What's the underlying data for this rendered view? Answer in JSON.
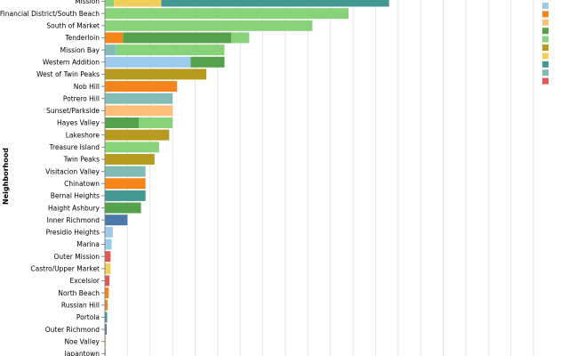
{
  "chart_data": {
    "type": "bar",
    "orientation": "horizontal",
    "stacked": true,
    "title": "",
    "xlabel": "",
    "ylabel": "Neighborhood",
    "xlim": [
      0,
      190
    ],
    "x_gridline_step": 10,
    "grid": true,
    "legend_position": "right",
    "colors": {
      "c1": "#9ecae9",
      "c2": "#f58518",
      "c3": "#ffbf79",
      "c4": "#54a24b",
      "c5": "#88d27a",
      "c6": "#b79a20",
      "c7": "#f2cf5b",
      "c8": "#439894",
      "c9": "#83bcb6",
      "c10": "#e45756",
      "c11": "#4c78a8"
    },
    "legend_swatches": [
      "c1",
      "c2",
      "c3",
      "c4",
      "c5",
      "c6",
      "c7",
      "c8",
      "c9",
      "c10"
    ],
    "rows": [
      {
        "category": "Mission",
        "segments": [
          {
            "value": 4,
            "color": "c5"
          },
          {
            "value": 21,
            "color": "c7"
          },
          {
            "value": 101,
            "color": "c8"
          }
        ]
      },
      {
        "category": "Financial District/South Beach",
        "segments": [
          {
            "value": 108,
            "color": "c5"
          }
        ]
      },
      {
        "category": "South of Market",
        "segments": [
          {
            "value": 92,
            "color": "c5"
          }
        ]
      },
      {
        "category": "Tenderloin",
        "segments": [
          {
            "value": 8,
            "color": "c2"
          },
          {
            "value": 48,
            "color": "c4"
          },
          {
            "value": 8,
            "color": "c5"
          }
        ]
      },
      {
        "category": "Mission Bay",
        "segments": [
          {
            "value": 5,
            "color": "c9"
          },
          {
            "value": 48,
            "color": "c5"
          }
        ]
      },
      {
        "category": "Western Addition",
        "segments": [
          {
            "value": 38,
            "color": "c1"
          },
          {
            "value": 15,
            "color": "c4"
          }
        ]
      },
      {
        "category": "West of Twin Peaks",
        "segments": [
          {
            "value": 45,
            "color": "c6"
          }
        ]
      },
      {
        "category": "Nob Hill",
        "segments": [
          {
            "value": 32,
            "color": "c2"
          }
        ]
      },
      {
        "category": "Potrero Hill",
        "segments": [
          {
            "value": 30,
            "color": "c9"
          }
        ]
      },
      {
        "category": "Sunset/Parkside",
        "segments": [
          {
            "value": 30,
            "color": "c3"
          }
        ]
      },
      {
        "category": "Hayes Valley",
        "segments": [
          {
            "value": 15,
            "color": "c4"
          },
          {
            "value": 15,
            "color": "c5"
          }
        ]
      },
      {
        "category": "Lakeshore",
        "segments": [
          {
            "value": 28.5,
            "color": "c6"
          }
        ]
      },
      {
        "category": "Treasure Island",
        "segments": [
          {
            "value": 24,
            "color": "c5"
          }
        ]
      },
      {
        "category": "Twin Peaks",
        "segments": [
          {
            "value": 22,
            "color": "c6"
          }
        ]
      },
      {
        "category": "Visitacion Valley",
        "segments": [
          {
            "value": 18,
            "color": "c9"
          }
        ]
      },
      {
        "category": "Chinatown",
        "segments": [
          {
            "value": 18,
            "color": "c2"
          }
        ]
      },
      {
        "category": "Bernal Heights",
        "segments": [
          {
            "value": 18,
            "color": "c8"
          }
        ]
      },
      {
        "category": "Haight Ashbury",
        "segments": [
          {
            "value": 16,
            "color": "c4"
          }
        ]
      },
      {
        "category": "Inner Richmond",
        "segments": [
          {
            "value": 10,
            "color": "c11"
          }
        ]
      },
      {
        "category": "Presidio Heights",
        "segments": [
          {
            "value": 3.5,
            "color": "c1"
          }
        ]
      },
      {
        "category": "Marina",
        "segments": [
          {
            "value": 3,
            "color": "c1"
          }
        ]
      },
      {
        "category": "Outer Mission",
        "segments": [
          {
            "value": 2.5,
            "color": "c10"
          }
        ]
      },
      {
        "category": "Castro/Upper Market",
        "segments": [
          {
            "value": 2.5,
            "color": "c7"
          }
        ]
      },
      {
        "category": "Excelsior",
        "segments": [
          {
            "value": 2,
            "color": "c10"
          }
        ]
      },
      {
        "category": "North Beach",
        "segments": [
          {
            "value": 1.7,
            "color": "c2"
          }
        ]
      },
      {
        "category": "Russian Hill",
        "segments": [
          {
            "value": 1.2,
            "color": "c2"
          }
        ]
      },
      {
        "category": "Portola",
        "segments": [
          {
            "value": 1,
            "color": "c8"
          }
        ]
      },
      {
        "category": "Outer Richmond",
        "segments": [
          {
            "value": 0.8,
            "color": "c11"
          }
        ]
      },
      {
        "category": "Noe Valley",
        "segments": [
          {
            "value": 0.5,
            "color": "c7"
          }
        ]
      },
      {
        "category": "Japantown",
        "segments": [
          {
            "value": 0.3,
            "color": "c11"
          }
        ]
      }
    ]
  }
}
